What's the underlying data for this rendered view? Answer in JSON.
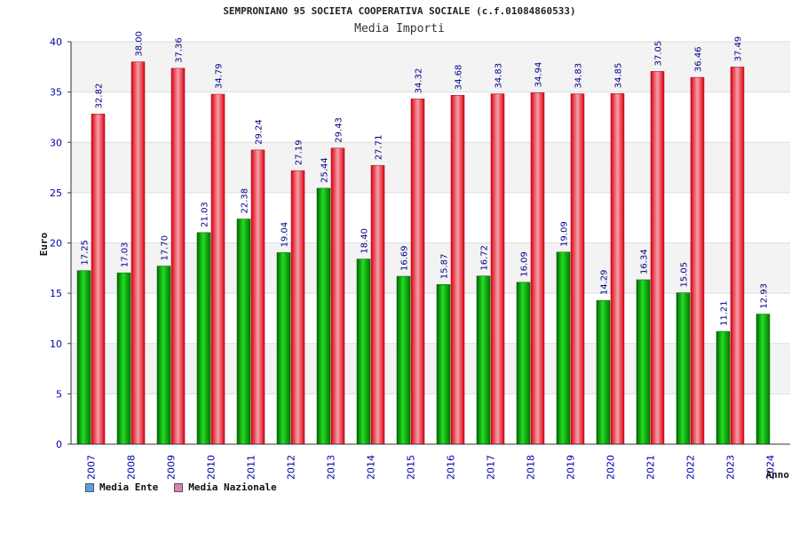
{
  "chart_data": {
    "type": "bar",
    "title": "SEMPRONIANO 95 SOCIETA COOPERATIVA SOCIALE (c.f.01084860533)",
    "subtitle": "Media Importi",
    "xlabel": "Anno",
    "ylabel": "Euro",
    "ylim": [
      0,
      40
    ],
    "yticks": [
      0,
      5,
      10,
      15,
      20,
      25,
      30,
      35,
      40
    ],
    "grid": true,
    "legend_position": "bottom-left",
    "categories": [
      "2007",
      "2008",
      "2009",
      "2010",
      "2011",
      "2012",
      "2013",
      "2014",
      "2015",
      "2016",
      "2017",
      "2018",
      "2019",
      "2020",
      "2021",
      "2022",
      "2023",
      "2024"
    ],
    "series": [
      {
        "name": "Media Ente",
        "color": "#00aa00",
        "legend_color": "#5aa0e0",
        "values": [
          17.25,
          17.03,
          17.7,
          21.03,
          22.38,
          19.04,
          25.44,
          18.4,
          16.69,
          15.87,
          16.72,
          16.09,
          19.09,
          14.29,
          16.34,
          15.05,
          11.21,
          12.93
        ],
        "labels": [
          "17.25",
          "17.03",
          "17.70",
          "21.03",
          "22.38",
          "19.04",
          "25.44",
          "18.40",
          "16.69",
          "15.87",
          "16.72",
          "16.09",
          "19.09",
          "14.29",
          "16.34",
          "15.05",
          "11.21",
          "12.93"
        ]
      },
      {
        "name": "Media Nazionale",
        "color": "#ee1122",
        "legend_color": "#e080b0",
        "values": [
          32.82,
          38.0,
          37.36,
          34.79,
          29.24,
          27.19,
          29.43,
          27.71,
          34.32,
          34.68,
          34.83,
          34.94,
          34.83,
          34.85,
          37.05,
          36.46,
          37.49,
          null
        ],
        "labels": [
          "32.82",
          "38.00",
          "37.36",
          "34.79",
          "29.24",
          "27.19",
          "29.43",
          "27.71",
          "34.32",
          "34.68",
          "34.83",
          "34.94",
          "34.83",
          "34.85",
          "37.05",
          "36.46",
          "37.49",
          ""
        ]
      }
    ]
  }
}
